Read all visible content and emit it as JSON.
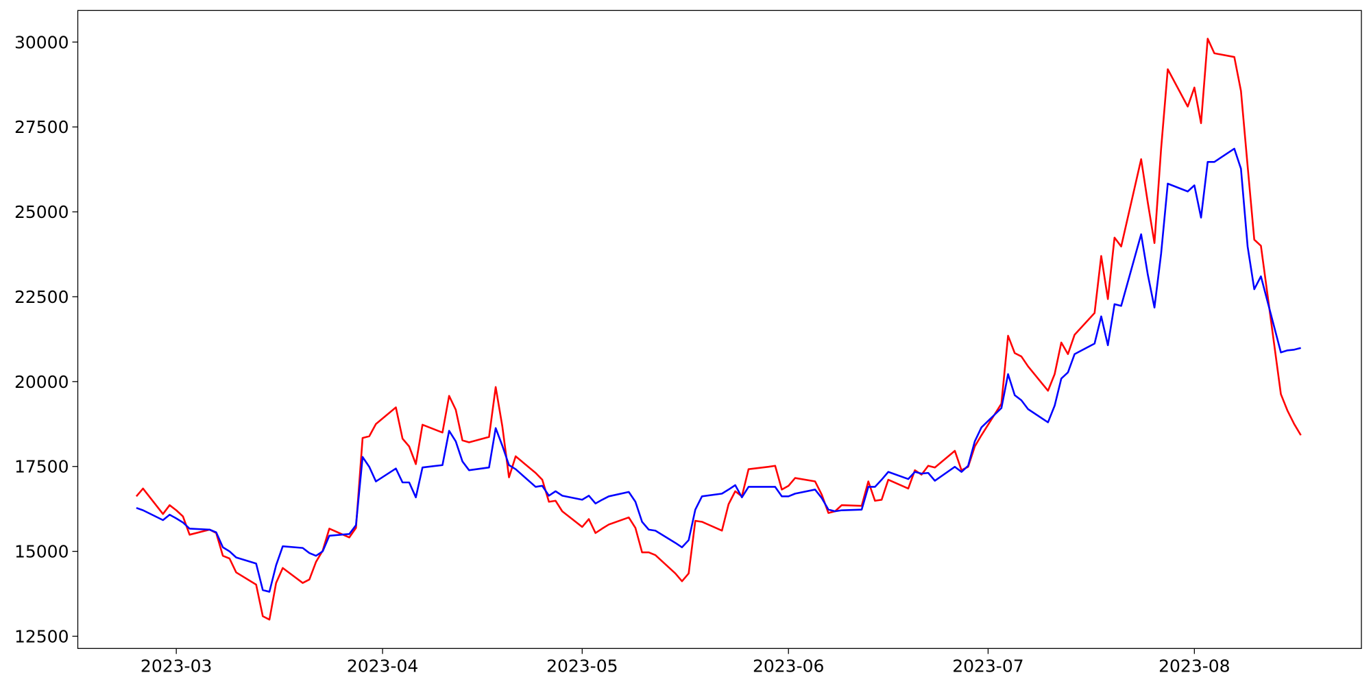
{
  "chart_data": {
    "type": "line",
    "x": [
      19411,
      19412,
      19415,
      19416,
      19417,
      19418,
      19419,
      19422,
      19423,
      19424,
      19425,
      19426,
      19429,
      19430,
      19431,
      19432,
      19433,
      19436,
      19437,
      19438,
      19439,
      19440,
      19443,
      19444,
      19445,
      19446,
      19447,
      19450,
      19451,
      19452,
      19453,
      19454,
      19457,
      19458,
      19459,
      19460,
      19461,
      19464,
      19465,
      19466,
      19467,
      19468,
      19471,
      19472,
      19473,
      19474,
      19475,
      19478,
      19479,
      19480,
      19481,
      19482,
      19485,
      19486,
      19487,
      19488,
      19489,
      19492,
      19493,
      19494,
      19495,
      19496,
      19499,
      19500,
      19501,
      19502,
      19503,
      19506,
      19507,
      19508,
      19509,
      19510,
      19513,
      19514,
      19515,
      19516,
      19517,
      19520,
      19521,
      19522,
      19523,
      19524,
      19527,
      19528,
      19529,
      19530,
      19531,
      19534,
      19535,
      19536,
      19537,
      19538,
      19541,
      19542,
      19543,
      19544,
      19545,
      19548,
      19549,
      19550,
      19551,
      19552,
      19555,
      19556,
      19557,
      19558,
      19559,
      19562,
      19563,
      19564,
      19565,
      19566,
      19569,
      19570,
      19571,
      19572,
      19573,
      19576,
      19577,
      19578,
      19579,
      19580,
      19583,
      19584,
      19585,
      19586
    ],
    "series": [
      {
        "color": "#ff0000",
        "values": [
          16620,
          16850,
          16100,
          16360,
          16210,
          16030,
          15490,
          15640,
          15540,
          14870,
          14790,
          14380,
          14020,
          13090,
          12990,
          14070,
          14510,
          14070,
          14170,
          14690,
          15020,
          15670,
          15410,
          15690,
          18340,
          18390,
          18750,
          19240,
          18320,
          18090,
          17570,
          18730,
          18500,
          19580,
          19170,
          18270,
          18210,
          18370,
          19840,
          18680,
          17180,
          17800,
          17310,
          17110,
          16460,
          16490,
          16180,
          15720,
          15950,
          15540,
          15670,
          15790,
          16000,
          15690,
          14970,
          14970,
          14890,
          14350,
          14120,
          14350,
          15900,
          15870,
          15610,
          16390,
          16770,
          16620,
          17420,
          17490,
          17520,
          16820,
          16930,
          17160,
          17060,
          16670,
          16130,
          16180,
          16360,
          16340,
          17060,
          16490,
          16520,
          17110,
          16850,
          17390,
          17260,
          17520,
          17470,
          17960,
          17390,
          17490,
          18090,
          18420,
          19350,
          21350,
          20840,
          20740,
          20450,
          19730,
          20220,
          21150,
          20810,
          21380,
          22020,
          23700,
          22430,
          24240,
          23980,
          26550,
          25270,
          24080,
          26860,
          29200,
          28100,
          28660,
          27610,
          30100,
          29670,
          29560,
          28560,
          26350,
          24180,
          24000,
          19630,
          19140,
          18750,
          18420
        ]
      },
      {
        "color": "#0000ff",
        "values": [
          16280,
          16210,
          15920,
          16080,
          15970,
          15850,
          15670,
          15640,
          15560,
          15120,
          15000,
          14820,
          14640,
          13860,
          13810,
          14590,
          15150,
          15100,
          14950,
          14870,
          15000,
          15460,
          15510,
          15770,
          17780,
          17490,
          17060,
          17440,
          17030,
          17030,
          16590,
          17470,
          17540,
          18550,
          18240,
          17650,
          17390,
          17470,
          18630,
          18110,
          17540,
          17420,
          16900,
          16930,
          16640,
          16770,
          16640,
          16520,
          16640,
          16410,
          16520,
          16620,
          16750,
          16460,
          15870,
          15640,
          15610,
          15250,
          15120,
          15330,
          16230,
          16620,
          16700,
          16820,
          16950,
          16590,
          16900,
          16900,
          16900,
          16620,
          16620,
          16700,
          16820,
          16570,
          16230,
          16180,
          16210,
          16230,
          16900,
          16900,
          17110,
          17340,
          17130,
          17340,
          17290,
          17310,
          17080,
          17490,
          17340,
          17520,
          18240,
          18650,
          19220,
          20220,
          19600,
          19450,
          19190,
          18800,
          19290,
          20090,
          20270,
          20810,
          21120,
          21920,
          21070,
          22280,
          22230,
          24340,
          23150,
          22180,
          23770,
          25830,
          25600,
          25780,
          24830,
          26470,
          26470,
          26860,
          26270,
          23980,
          22720,
          23100,
          20860,
          20920,
          20940,
          20990
        ]
      }
    ],
    "xlim": [
      19402.2,
      19595.1
    ],
    "xticks": [
      {
        "value": 19417,
        "label": "2023-03"
      },
      {
        "value": 19448,
        "label": "2023-04"
      },
      {
        "value": 19478,
        "label": "2023-05"
      },
      {
        "value": 19509,
        "label": "2023-06"
      },
      {
        "value": 19539,
        "label": "2023-07"
      },
      {
        "value": 19570,
        "label": "2023-08"
      }
    ],
    "ylim": [
      12140,
      30930
    ],
    "yticks": [
      12500,
      15000,
      17500,
      20000,
      22500,
      25000,
      27500,
      30000
    ],
    "grid": false
  }
}
